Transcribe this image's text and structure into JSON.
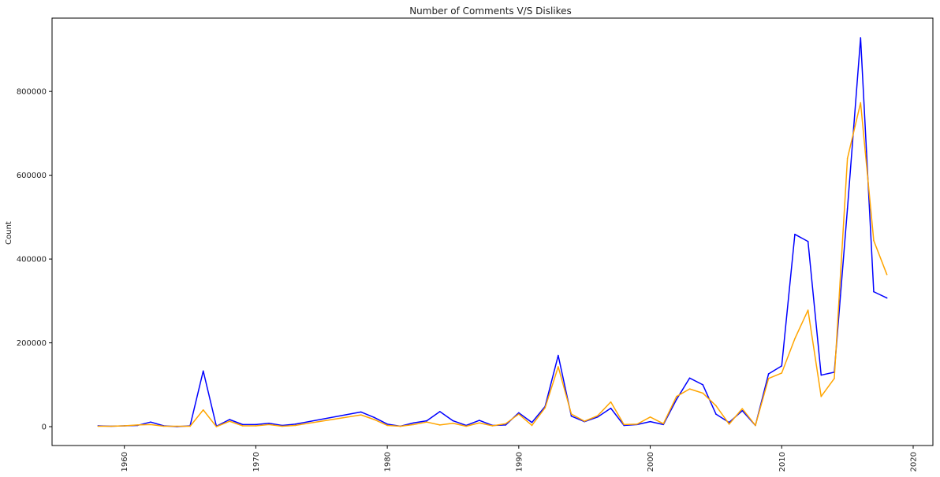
{
  "chart_data": {
    "type": "line",
    "title": "Number of Comments V/S Dislikes",
    "xlabel": "",
    "ylabel": "Count",
    "xlim": [
      1954.5,
      2021.5
    ],
    "ylim": [
      -45000,
      975000
    ],
    "x_ticks": [
      1960,
      1970,
      1980,
      1990,
      2000,
      2010,
      2020
    ],
    "y_ticks": [
      0,
      200000,
      400000,
      600000,
      800000
    ],
    "grid": false,
    "legend": "none",
    "x": [
      1958,
      1959,
      1960,
      1961,
      1962,
      1963,
      1964,
      1965,
      1966,
      1967,
      1968,
      1969,
      1970,
      1971,
      1972,
      1973,
      1978,
      1979,
      1980,
      1981,
      1982,
      1983,
      1984,
      1985,
      1986,
      1987,
      1988,
      1989,
      1990,
      1991,
      1992,
      1993,
      1994,
      1995,
      1996,
      1997,
      1998,
      1999,
      2000,
      2001,
      2002,
      2003,
      2004,
      2005,
      2006,
      2007,
      2008,
      2009,
      2010,
      2011,
      2012,
      2013,
      2014,
      2015,
      2016,
      2017,
      2018
    ],
    "series": [
      {
        "color": "#0000ff",
        "values": [
          2000,
          1000,
          2000,
          3000,
          11000,
          2000,
          0,
          2000,
          133000,
          1000,
          17000,
          5000,
          5000,
          8000,
          3000,
          6000,
          35000,
          22000,
          6000,
          1000,
          9000,
          14000,
          36000,
          14000,
          3000,
          15000,
          3000,
          4000,
          33000,
          10000,
          48000,
          170000,
          25000,
          12000,
          23000,
          44000,
          3000,
          5000,
          12000,
          5000,
          65000,
          116000,
          100000,
          30000,
          10000,
          38000,
          3000,
          126000,
          145000,
          459000,
          442000,
          123000,
          130000,
          520000,
          928000,
          322000,
          307000
        ]
      },
      {
        "color": "#ffa500",
        "values": [
          1000,
          1000,
          2000,
          4000,
          5000,
          1000,
          1000,
          1000,
          40000,
          0,
          13000,
          2000,
          2000,
          5000,
          1000,
          3000,
          28000,
          17000,
          3000,
          1000,
          5000,
          11000,
          4000,
          8000,
          1000,
          9000,
          2000,
          7000,
          30000,
          3000,
          45000,
          143000,
          30000,
          13000,
          26000,
          59000,
          5000,
          6000,
          23000,
          7000,
          72000,
          90000,
          80000,
          50000,
          6000,
          43000,
          3000,
          115000,
          128000,
          210000,
          278000,
          72000,
          115000,
          640000,
          773000,
          444000,
          363000
        ]
      }
    ]
  }
}
